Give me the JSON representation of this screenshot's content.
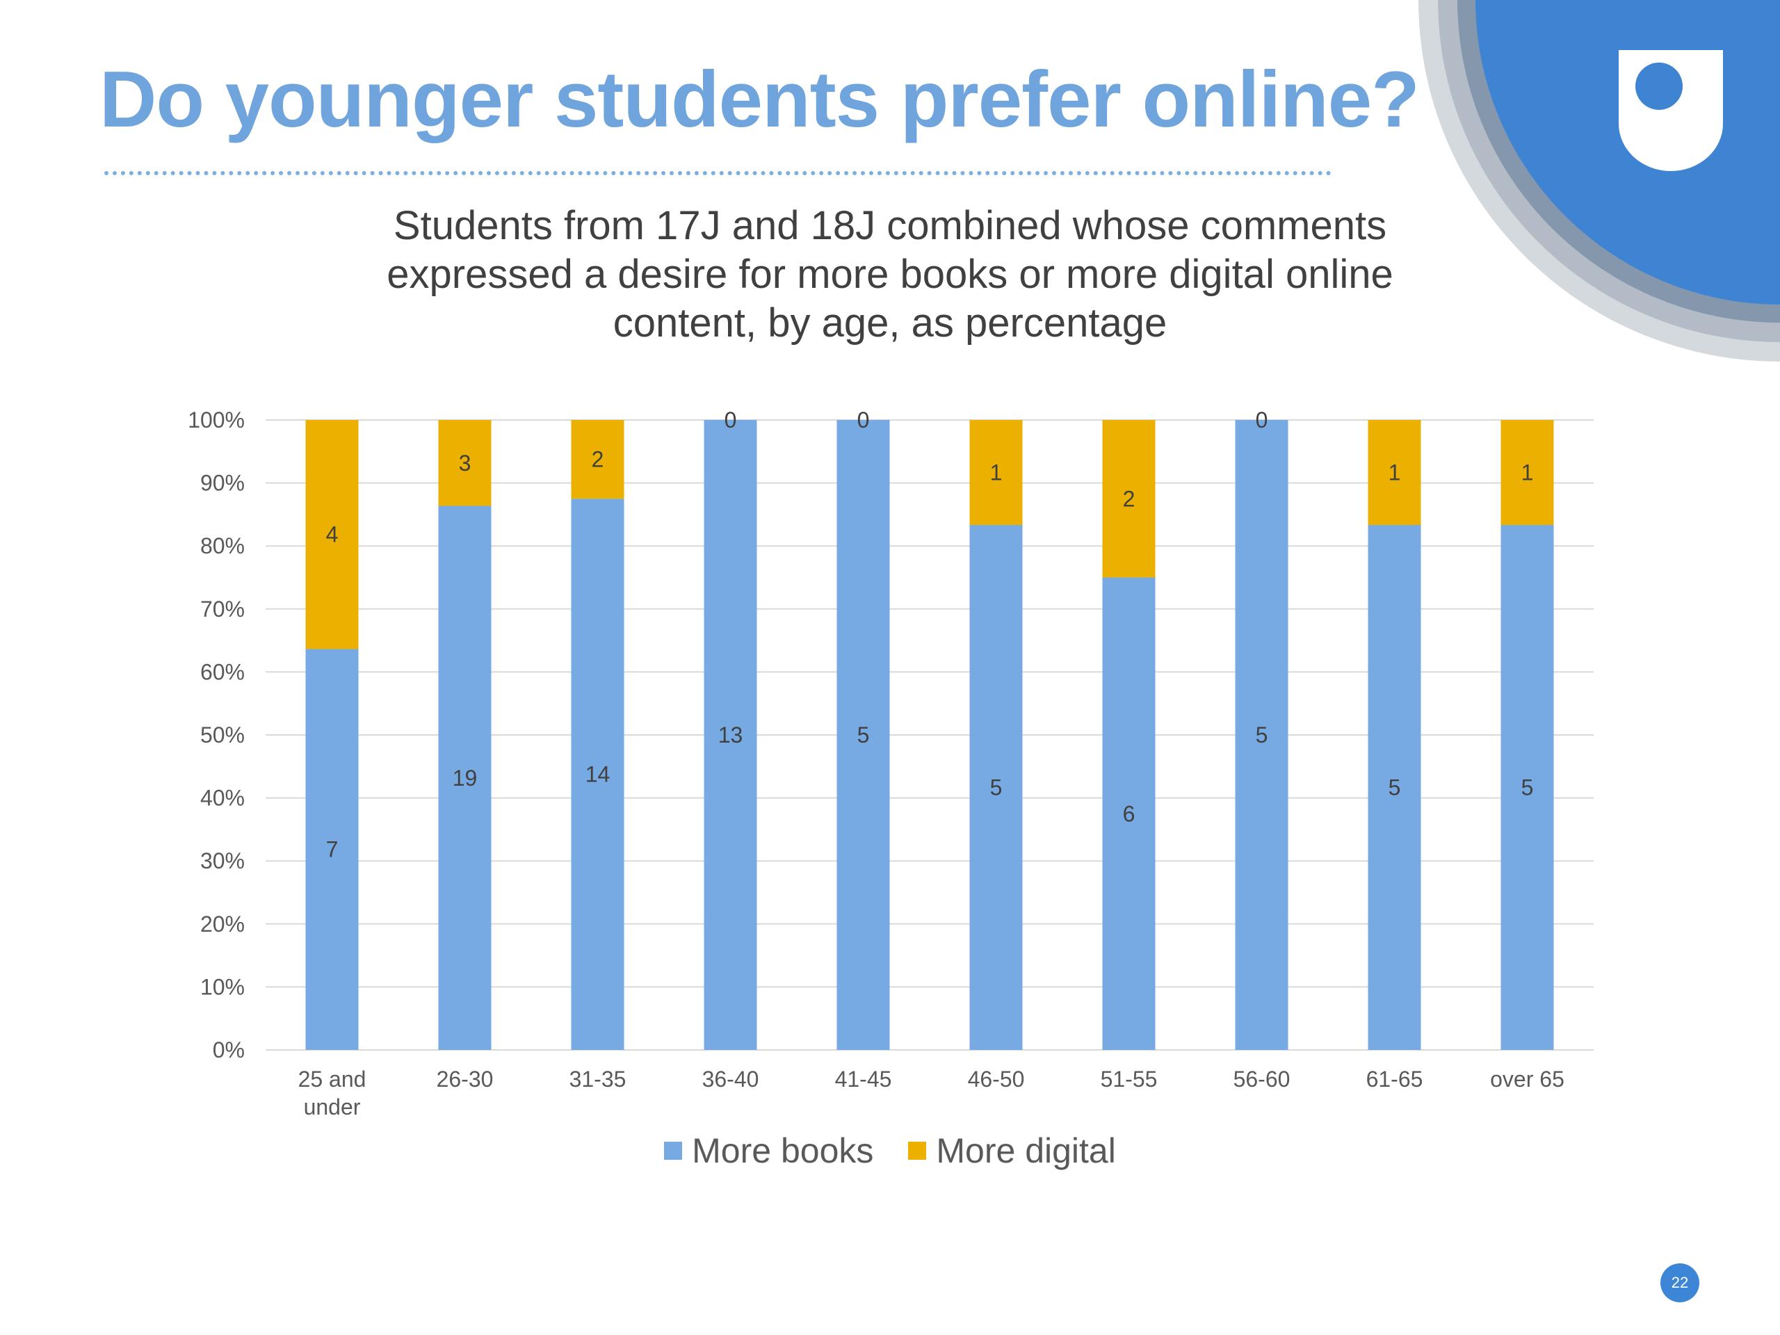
{
  "slide": {
    "title": "Do younger students prefer online?",
    "page_number": "22",
    "logo_icon": "open-university-shield-icon"
  },
  "colors": {
    "title": "#6fa4dc",
    "books": "#77aae3",
    "digital": "#ebb000",
    "page_badge": "#3d85d6"
  },
  "chart_data": {
    "type": "bar",
    "stacked": true,
    "percent_stacked": true,
    "title": "Students from 17J and 18J combined whose comments expressed a desire for more books or more digital online content, by age, as percentage",
    "title_lines": [
      "Students from 17J and 18J combined whose comments",
      "expressed a desire for more books or more digital online",
      "content, by age, as percentage"
    ],
    "categories": [
      "25 and under",
      "26-30",
      "31-35",
      "36-40",
      "41-45",
      "46-50",
      "51-55",
      "56-60",
      "61-65",
      "over 65"
    ],
    "category_label_lines": [
      [
        "25 and",
        "under"
      ],
      [
        "26-30"
      ],
      [
        "31-35"
      ],
      [
        "36-40"
      ],
      [
        "41-45"
      ],
      [
        "46-50"
      ],
      [
        "51-55"
      ],
      [
        "56-60"
      ],
      [
        "61-65"
      ],
      [
        "over 65"
      ]
    ],
    "series": [
      {
        "name": "More books",
        "color": "#77aae3",
        "values": [
          7,
          19,
          14,
          13,
          5,
          5,
          6,
          5,
          5,
          5
        ]
      },
      {
        "name": "More digital",
        "color": "#ebb000",
        "values": [
          4,
          3,
          2,
          0,
          0,
          1,
          2,
          0,
          1,
          1
        ]
      }
    ],
    "ylim": [
      0,
      100
    ],
    "yticks": [
      "0%",
      "10%",
      "20%",
      "30%",
      "40%",
      "50%",
      "60%",
      "70%",
      "80%",
      "90%",
      "100%"
    ],
    "grid": true,
    "legend_position": "bottom"
  }
}
